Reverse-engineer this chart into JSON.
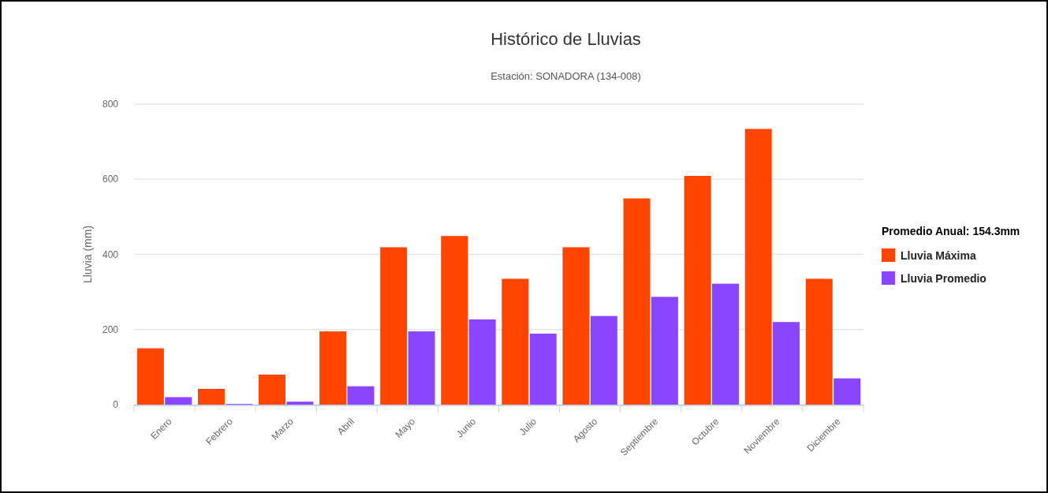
{
  "chart_data": {
    "type": "bar",
    "title": "Histórico de Lluvias",
    "subtitle": "Estación: SONADORA (134-008)",
    "ylabel": "Lluvia (mm)",
    "legend_title": "Promedio Anual: 154.3mm",
    "categories": [
      "Enero",
      "Febrero",
      "Marzo",
      "Abril",
      "Mayo",
      "Junio",
      "Julio",
      "Agosto",
      "Septiembre",
      "Octubre",
      "Noviembre",
      "Diciembre"
    ],
    "series": [
      {
        "name": "Lluvia Máxima",
        "color": "#ff4500",
        "values": [
          150,
          42,
          80,
          195,
          419,
          449,
          335,
          419,
          549,
          609,
          734,
          335
        ]
      },
      {
        "name": "Lluvia Promedio",
        "color": "#8a45ff",
        "values": [
          20,
          2,
          8,
          49,
          195,
          227,
          189,
          236,
          287,
          322,
          220,
          70
        ]
      }
    ],
    "ylim": [
      0,
      800
    ],
    "yticks": [
      0,
      200,
      400,
      600,
      800
    ],
    "grid": "y",
    "legend": "right"
  }
}
